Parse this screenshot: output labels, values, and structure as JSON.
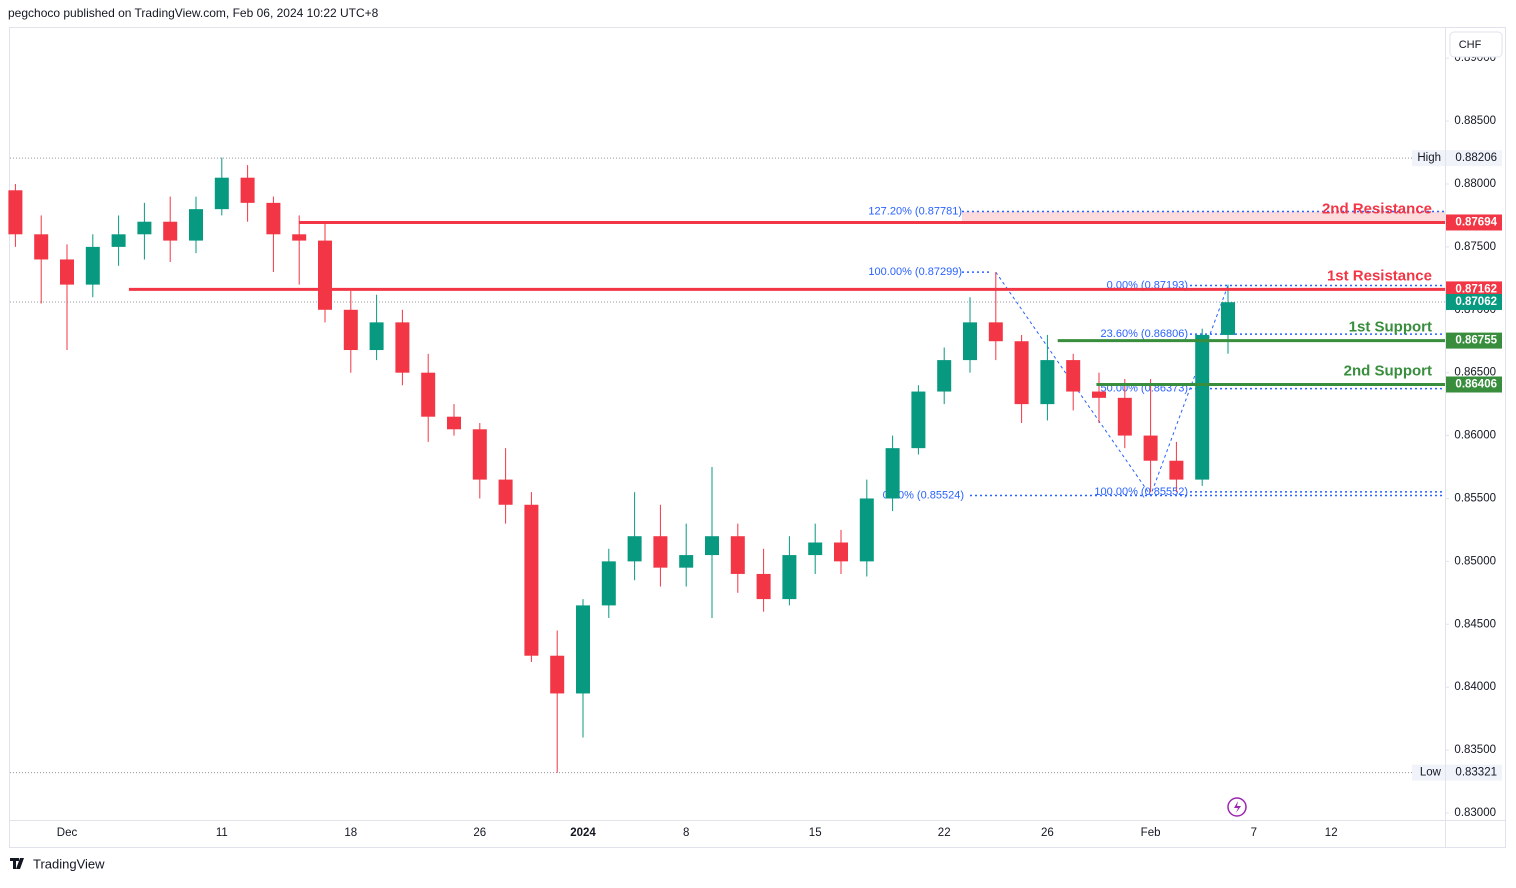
{
  "header": {
    "text": "pegchoco published on TradingView.com, Feb 06, 2024 10:22 UTC+8"
  },
  "currency_button": "CHF",
  "footer": {
    "brand": "TradingView"
  },
  "chart_data": {
    "type": "candlestick",
    "categories": [
      null,
      null,
      "Dec",
      null,
      null,
      null,
      null,
      null,
      "11",
      null,
      null,
      null,
      null,
      "18",
      null,
      null,
      null,
      null,
      "26",
      null,
      null,
      null,
      "2024",
      null,
      null,
      null,
      "8",
      null,
      null,
      null,
      null,
      "15",
      null,
      null,
      null,
      null,
      "22",
      null,
      null,
      null,
      "26",
      null,
      null,
      null,
      "Feb",
      null,
      null,
      null,
      "7",
      null,
      null,
      "12",
      null,
      null,
      null,
      null
    ],
    "open": [
      0.8795,
      0.876,
      0.874,
      0.872,
      0.875,
      0.876,
      0.877,
      0.8755,
      0.878,
      0.8805,
      0.8785,
      0.876,
      0.8755,
      0.87,
      0.8668,
      0.869,
      0.865,
      0.8615,
      0.8605,
      0.8565,
      0.8545,
      0.8425,
      0.8395,
      0.8465,
      0.85,
      0.852,
      0.8495,
      0.8505,
      0.852,
      0.849,
      0.847,
      0.8505,
      0.8515,
      0.85,
      0.855,
      0.859,
      0.8635,
      0.866,
      0.869,
      0.8675,
      0.8625,
      0.866,
      0.8635,
      0.863,
      0.86,
      0.858,
      0.8565,
      0.868,
      null,
      null,
      null,
      null,
      null,
      null,
      null,
      null
    ],
    "high": [
      0.88,
      0.8775,
      0.8752,
      0.876,
      0.8775,
      0.8785,
      0.879,
      0.879,
      0.8821,
      0.8815,
      0.879,
      0.8775,
      0.877,
      0.8715,
      0.8712,
      0.87,
      0.8665,
      0.8625,
      0.861,
      0.859,
      0.8555,
      0.8445,
      0.847,
      0.851,
      0.8555,
      0.8545,
      0.853,
      0.8575,
      0.853,
      0.851,
      0.852,
      0.853,
      0.8525,
      0.8565,
      0.86,
      0.864,
      0.867,
      0.871,
      0.873,
      0.868,
      0.868,
      0.8665,
      0.865,
      0.8645,
      0.8645,
      0.8595,
      0.8685,
      0.872,
      null,
      null,
      null,
      null,
      null,
      null,
      null,
      null
    ],
    "low": [
      0.875,
      0.8705,
      0.8668,
      0.871,
      0.8735,
      0.874,
      0.8738,
      0.8745,
      0.8775,
      0.877,
      0.873,
      0.872,
      0.869,
      0.865,
      0.866,
      0.864,
      0.8595,
      0.86,
      0.855,
      0.853,
      0.842,
      0.8332,
      0.836,
      0.8455,
      0.8485,
      0.848,
      0.848,
      0.8455,
      0.8475,
      0.846,
      0.8465,
      0.849,
      0.849,
      0.8488,
      0.854,
      0.8585,
      0.8625,
      0.865,
      0.866,
      0.861,
      0.8612,
      0.862,
      0.861,
      0.859,
      0.8555,
      0.8555,
      0.856,
      0.8665,
      null,
      null,
      null,
      null,
      null,
      null,
      null,
      null
    ],
    "close": [
      0.876,
      0.874,
      0.872,
      0.875,
      0.876,
      0.877,
      0.8755,
      0.878,
      0.8805,
      0.8785,
      0.876,
      0.8755,
      0.87,
      0.8668,
      0.869,
      0.865,
      0.8615,
      0.8605,
      0.8565,
      0.8545,
      0.8425,
      0.8395,
      0.8465,
      0.85,
      0.852,
      0.8495,
      0.8505,
      0.852,
      0.849,
      0.847,
      0.8505,
      0.8515,
      0.85,
      0.855,
      0.859,
      0.8635,
      0.866,
      0.869,
      0.8675,
      0.8625,
      0.866,
      0.8635,
      0.863,
      0.86,
      0.858,
      0.8565,
      0.868,
      0.8706,
      null,
      null,
      null,
      null,
      null,
      null,
      null,
      null
    ],
    "up_color": "#089981",
    "down_color": "#f23645",
    "ylim": [
      0.82944,
      0.8924
    ],
    "yticks": [
      {
        "value": 0.83,
        "label": "0.83000"
      },
      {
        "value": 0.835,
        "label": "0.83500"
      },
      {
        "value": 0.84,
        "label": "0.84000"
      },
      {
        "value": 0.845,
        "label": "0.84500"
      },
      {
        "value": 0.85,
        "label": "0.85000"
      },
      {
        "value": 0.855,
        "label": "0.85500"
      },
      {
        "value": 0.86,
        "label": "0.86000"
      },
      {
        "value": 0.865,
        "label": "0.86500"
      },
      {
        "value": 0.87,
        "label": "0.87000"
      },
      {
        "value": 0.875,
        "label": "0.87500"
      },
      {
        "value": 0.88,
        "label": "0.88000"
      },
      {
        "value": 0.885,
        "label": "0.88500"
      },
      {
        "value": 0.89,
        "label": "0.89000"
      }
    ],
    "levels": [
      {
        "label": "2nd Resistance",
        "value": 0.87694,
        "color": "#f23645"
      },
      {
        "label": "1st Resistance",
        "value": 0.87162,
        "color": "#f23645"
      },
      {
        "label": "1st Support",
        "value": 0.86755,
        "color": "#388e3c"
      },
      {
        "label": "2nd Support",
        "value": 0.86406,
        "color": "#388e3c"
      }
    ],
    "fib_levels": [
      {
        "label": "127.20% (0.87781)",
        "value": 0.87781
      },
      {
        "label": "100.00% (0.87299)",
        "value": 0.87299
      },
      {
        "label": "0.00% (0.87193)",
        "value": 0.87193
      },
      {
        "label": "23.60% (0.86806)",
        "value": 0.86806
      },
      {
        "label": "50.00% (0.86373)",
        "value": 0.86373
      },
      {
        "label": "100.00% (0.85552)",
        "value": 0.85552
      },
      {
        "label": "0.00% (0.85524)",
        "value": 0.85524
      }
    ],
    "last_price": {
      "value": 0.87062,
      "color": "#089981"
    },
    "session_high": {
      "label": "High",
      "value": 0.88206
    },
    "session_low": {
      "label": "Low",
      "value": 0.83321
    }
  }
}
